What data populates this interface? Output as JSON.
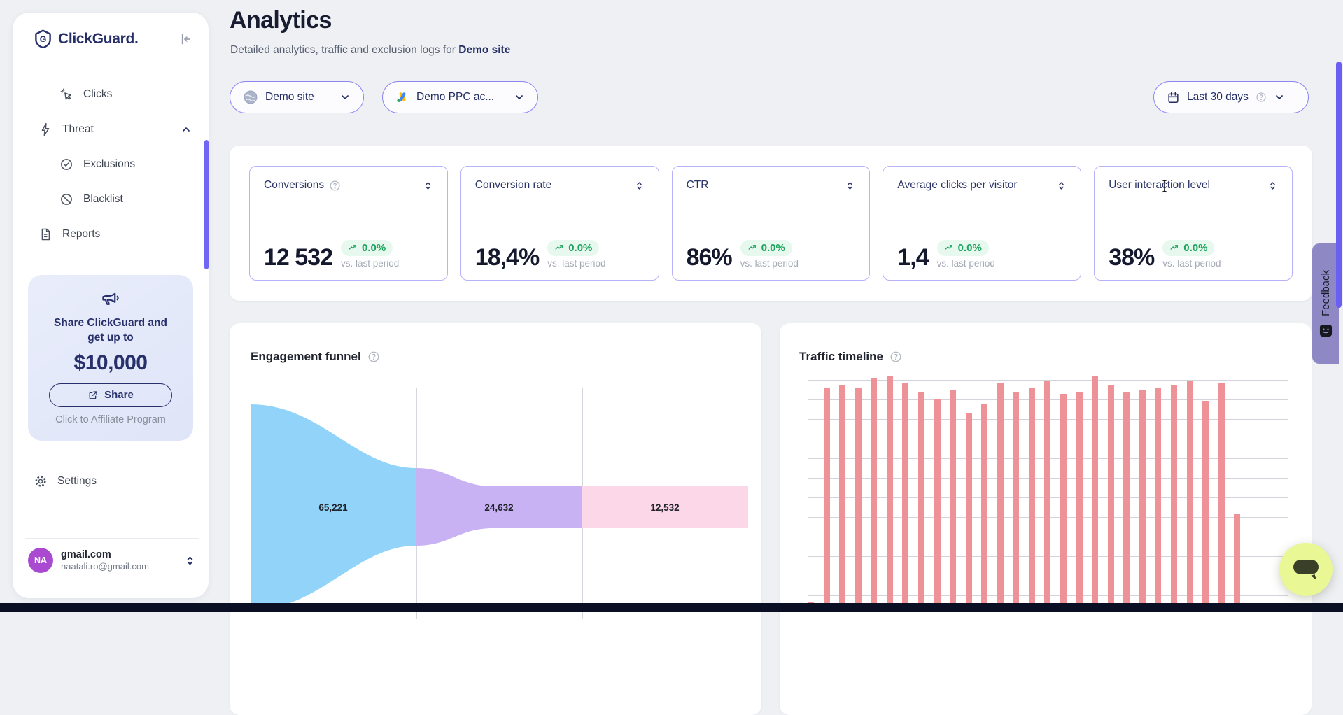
{
  "sidebar": {
    "brand": "ClickGuard.",
    "nav": [
      {
        "label": "Clicks",
        "icon": "cursor-click-icon"
      },
      {
        "label": "Threat",
        "icon": "lightning-icon",
        "expanded": true
      },
      {
        "label": "Exclusions",
        "icon": "badge-check-icon"
      },
      {
        "label": "Blacklist",
        "icon": "ban-icon"
      },
      {
        "label": "Reports",
        "icon": "document-icon"
      }
    ],
    "promo": {
      "line1": "Share ClickGuard and",
      "line2": "get up to",
      "amount": "$10,000",
      "share_label": "Share",
      "affiliate_label": "Click to Affiliate Program"
    },
    "settings_label": "Settings",
    "user": {
      "initials": "NA",
      "name": "gmail.com",
      "email": "naatali.ro@gmail.com"
    }
  },
  "header": {
    "title": "Analytics",
    "subtitle_prefix": "Detailed analytics, traffic and exclusion logs for ",
    "subtitle_target": "Demo site"
  },
  "filters": {
    "site_label": "Demo site",
    "account_label": "Demo PPC ac...",
    "range_label": "Last 30 days"
  },
  "stats": [
    {
      "title": "Conversions",
      "value": "12 532",
      "delta": "0.0%",
      "caption": "vs. last period",
      "has_help": true
    },
    {
      "title": "Conversion rate",
      "value": "18,4%",
      "delta": "0.0%",
      "caption": "vs. last period"
    },
    {
      "title": "CTR",
      "value": "86%",
      "delta": "0.0%",
      "caption": "vs. last period"
    },
    {
      "title": "Average clicks per visitor",
      "value": "1,4",
      "delta": "0.0%",
      "caption": "vs. last period"
    },
    {
      "title": "User interaction level",
      "value": "38%",
      "delta": "0.0%",
      "caption": "vs. last period"
    }
  ],
  "chart_data": [
    {
      "type": "funnel",
      "title": "Engagement funnel",
      "segments": [
        {
          "label": "65,221",
          "value": 65221,
          "color": "#92d4f9"
        },
        {
          "label": "24,632",
          "value": 24632,
          "color": "#c9b2f4"
        },
        {
          "label": "12,532",
          "value": 12532,
          "color": "#fcd7e8"
        }
      ],
      "grid": "vertical separators between stages"
    },
    {
      "type": "bar",
      "title": "Traffic timeline",
      "bar_color": "#ef9298",
      "grid": "horizontal lines, axis labels cut off by viewport",
      "bars_relative_pct": [
        2,
        95,
        96,
        95,
        99,
        100,
        97,
        93,
        90,
        94,
        84,
        88,
        97,
        93,
        95,
        98,
        92,
        93,
        100,
        96,
        93,
        94,
        95,
        96,
        98,
        89,
        97,
        40,
        0,
        0,
        0
      ]
    }
  ],
  "feedback_label": "Feedback",
  "icons": {
    "collapse-sidebar": "⇤",
    "chevron-up": "⌃",
    "chevron-down": "⌄",
    "sort": "⇅",
    "help": "?",
    "trend-up": "↗"
  },
  "colors": {
    "accent_indigo": "#6a5ff1",
    "brand_navy": "#252e68",
    "badge_green_bg": "#e7f8ee",
    "badge_green_text": "#1ea45c",
    "funnel_blue": "#92d4f9",
    "funnel_purple": "#c9b2f4",
    "funnel_pink": "#fcd7e8",
    "bar_salmon": "#ef9298",
    "promo_bg": "#e4e9fa",
    "feedback_bg": "#8e89c4",
    "chat_bg": "#e9f895"
  }
}
